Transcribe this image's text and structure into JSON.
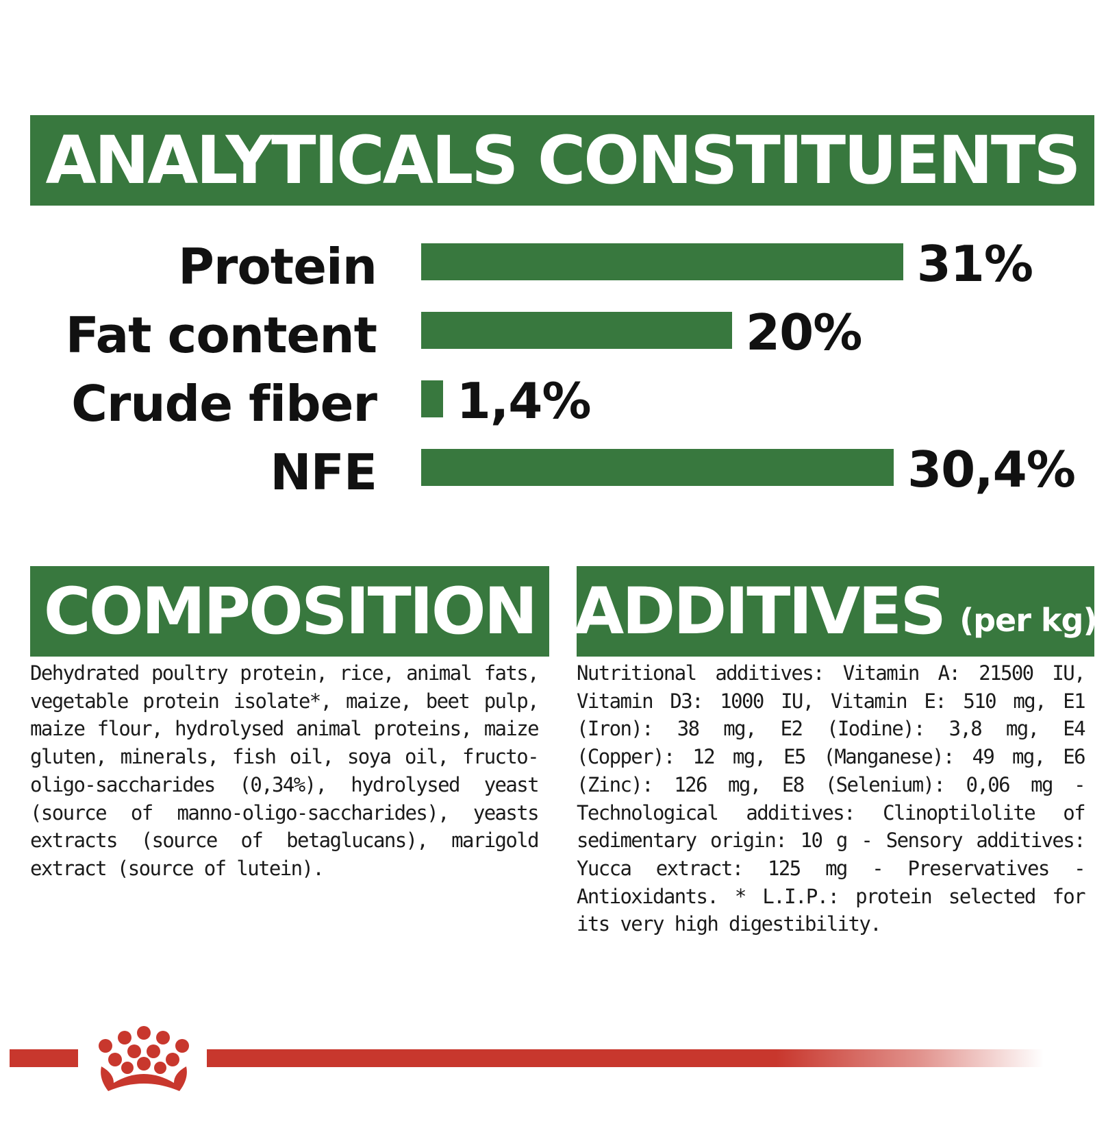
{
  "header": {
    "title": "ANALYTICALS CONSTITUENTS"
  },
  "chart_data": {
    "type": "bar",
    "orientation": "horizontal",
    "title": "ANALYTICALS CONSTITUENTS",
    "categories": [
      "Protein",
      "Fat content",
      "Crude fiber",
      "NFE"
    ],
    "values": [
      31,
      20,
      1.4,
      30.4
    ],
    "value_labels": [
      "31%",
      "20%",
      "1,4%",
      "30,4%"
    ],
    "unit": "%",
    "bar_color": "#38783e",
    "grid": false,
    "legend": "none"
  },
  "composition": {
    "title": "COMPOSITION",
    "text": "Dehydrated poultry protein, rice, animal fats, vegetable protein isolate*, maize, beet pulp, maize flour, hydrolysed animal proteins, maize gluten, minerals, fish oil, soya oil, fructo-oligo-saccharides (0,34%), hydrolysed yeast (source of manno-oligo-saccharides), yeasts extracts (source of betaglucans), marigold extract (source of lutein)."
  },
  "additives": {
    "title": "ADDITIVES",
    "title_suffix": "(per kg)",
    "text": "Nutritional additives: Vitamin A: 21500 IU, Vitamin D3: 1000 IU, Vitamin E: 510 mg, E1 (Iron): 38 mg, E2 (Iodine): 3,8 mg, E4 (Copper): 12 mg, E5 (Manganese): 49 mg, E6 (Zinc): 126 mg, E8 (Selenium): 0,06 mg - Technological additives: Clinoptilolite of sedimentary origin: 10 g - Sensory additives: Yucca extract: 125 mg - Preservatives - Antioxidants. * L.I.P.: protein selected for its very high digestibility."
  },
  "footer": {
    "logo_icon": "crown-icon",
    "accent_color": "#c8372d"
  }
}
